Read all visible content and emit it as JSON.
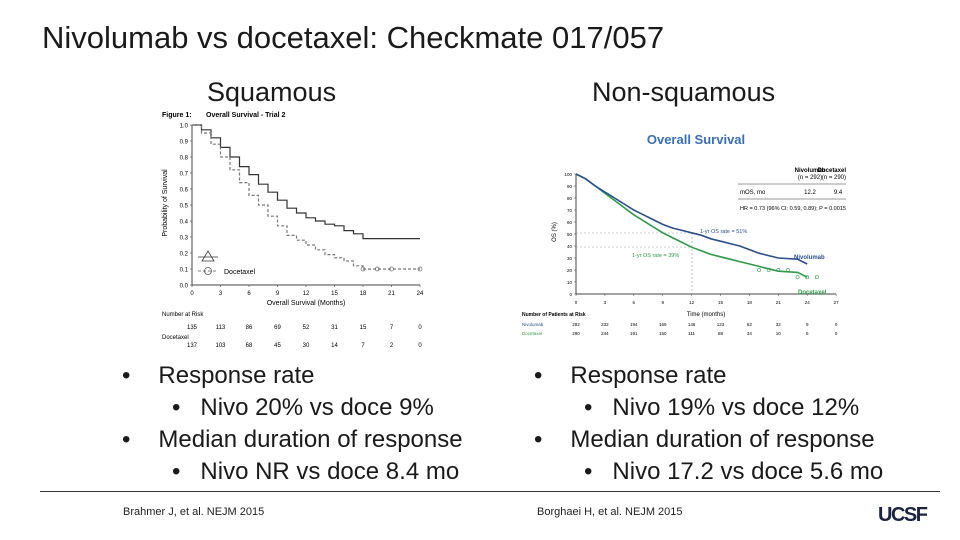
{
  "slide": {
    "title": "Nivolumab vs docetaxel: Checkmate 017/057",
    "left": {
      "heading": "Squamous",
      "bullets": [
        {
          "level": 1,
          "text": "Response rate"
        },
        {
          "level": 2,
          "text": "Nivo 20% vs doce 9%"
        },
        {
          "level": 1,
          "text": "Median duration of response"
        },
        {
          "level": 2,
          "text": "Nivo NR vs doce 8.4 mo"
        }
      ],
      "citation": "Brahmer J, et al. NEJM 2015"
    },
    "right": {
      "heading": "Non-squamous",
      "bullets": [
        {
          "level": 1,
          "text": "Response rate"
        },
        {
          "level": 2,
          "text": "Nivo 19% vs doce 12%"
        },
        {
          "level": 1,
          "text": "Median duration of response"
        },
        {
          "level": 2,
          "text": "Nivo 17.2 vs doce 5.6 mo"
        }
      ],
      "citation": "Borghaei H, et al. NEJM 2015"
    },
    "bullet_glyph": "•",
    "logo_text": "UCSF"
  },
  "fig_left": {
    "figure_label": "Figure 1:",
    "title": "Overall Survival - Trial 2",
    "ylabel": "Probability of Survival",
    "xlabel": "Overall Survival (Months)",
    "yticks": [
      "1.0",
      "0.9",
      "0.8",
      "0.7",
      "0.6",
      "0.5",
      "0.4",
      "0.3",
      "0.2",
      "0.1",
      "0.0"
    ],
    "xticks": [
      "0",
      "3",
      "6",
      "9",
      "12",
      "15",
      "18",
      "21",
      "24"
    ],
    "legend": [
      "Docetaxel"
    ],
    "risk_label": "Number at Risk",
    "risk_row1": [
      "135",
      "113",
      "86",
      "69",
      "52",
      "31",
      "15",
      "7",
      "0"
    ],
    "risk_row2_label": "Docetaxel",
    "risk_row2": [
      "137",
      "103",
      "68",
      "45",
      "30",
      "14",
      "7",
      "2",
      "0"
    ],
    "colors": {
      "nivo": "#333333",
      "doce": "#777777"
    }
  },
  "fig_right": {
    "title": "Overall Survival",
    "ylabel": "OS (%)",
    "xlabel": "Time (months)",
    "yticks": [
      "100",
      "90",
      "80",
      "70",
      "60",
      "50",
      "40",
      "30",
      "20",
      "10",
      "0"
    ],
    "xticks": [
      "0",
      "3",
      "6",
      "9",
      "12",
      "15",
      "18",
      "21",
      "24",
      "27"
    ],
    "table_header_nivo": "Nivolumab",
    "table_header_nivo_n": "(n = 292)",
    "table_header_doce": "Docetaxel",
    "table_header_doce_n": "(n = 290)",
    "mos_label": "mOS, mo",
    "mos_nivo": "12.2",
    "mos_doce": "9.4",
    "hr_text": "HR = 0.73 (96% CI: 0.59, 0.89); P = 0.0015",
    "ann_nivo": "1-yr OS rate = 51%",
    "ann_doce": "1-yr OS rate = 39%",
    "legend_nivo": "Nivolumab",
    "legend_doce": "Docetaxel",
    "risk_label": "Number of Patients at Risk",
    "risk_nivo_label": "Nivolumab",
    "risk_nivo": [
      "292",
      "232",
      "194",
      "169",
      "146",
      "123",
      "62",
      "32",
      "9",
      "0"
    ],
    "risk_doce_label": "Docetaxel",
    "risk_doce": [
      "290",
      "244",
      "191",
      "150",
      "111",
      "88",
      "34",
      "10",
      "5",
      "0"
    ],
    "colors": {
      "title": "#3a6fb5",
      "nivo": "#2a4f8a",
      "doce": "#2e9a4a"
    }
  }
}
